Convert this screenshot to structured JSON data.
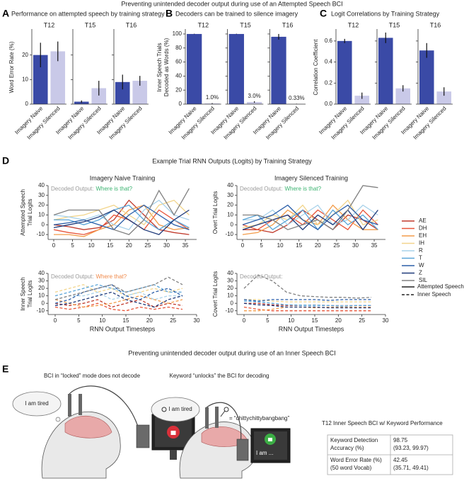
{
  "header": {
    "title": "Preventing unintended decoder output during use of an Attempted Speech BCI"
  },
  "panel_labels": [
    "A",
    "B",
    "C",
    "D",
    "E"
  ],
  "chart_data": [
    {
      "type": "bar",
      "title": "Performance on attempted speech by training strategy",
      "ylabel": [
        "Word Error Rate (%)"
      ],
      "categories": [
        "Imagery Naive",
        "Imagery Silenced"
      ],
      "colors": [
        "#3a4aa6",
        "#c9c9e8"
      ],
      "ylim": [
        0,
        30
      ],
      "yticks": [
        0,
        10,
        20
      ],
      "facets": [
        {
          "name": "T12",
          "values": [
            20,
            21.5
          ],
          "errors": [
            5,
            4
          ]
        },
        {
          "name": "T15",
          "values": [
            1,
            6.5
          ],
          "errors": [
            0.5,
            3
          ]
        },
        {
          "name": "T16",
          "values": [
            9,
            9.5
          ],
          "errors": [
            3,
            2
          ]
        }
      ]
    },
    {
      "type": "bar",
      "title": "Decoders can be trained to silence imagery",
      "ylabel": [
        "Inner Speech Trials",
        "Decoded as Words (%)"
      ],
      "categories": [
        "Imagery Naive",
        "Imagery Silenced"
      ],
      "colors": [
        "#3a4aa6",
        "#c9c9e8"
      ],
      "ylim": [
        0,
        105
      ],
      "yticks": [
        0,
        20,
        40,
        60,
        80,
        100
      ],
      "facets": [
        {
          "name": "T12",
          "values": [
            100,
            1.0
          ],
          "errors": [
            0.3,
            0.5
          ],
          "value_labels": [
            null,
            "1.0%"
          ]
        },
        {
          "name": "T15",
          "values": [
            100,
            3.0
          ],
          "errors": [
            0.3,
            1
          ],
          "value_labels": [
            null,
            "3.0%"
          ]
        },
        {
          "name": "T16",
          "values": [
            96,
            0.33
          ],
          "errors": [
            4,
            0.3
          ],
          "value_labels": [
            null,
            "0.33%"
          ]
        }
      ]
    },
    {
      "type": "bar",
      "title": "Logit Correlations by Training Strategy",
      "ylabel": [
        "Correlation Coefficient"
      ],
      "categories": [
        "Imagery Naive",
        "Imagery Silenced"
      ],
      "colors": [
        "#3a4aa6",
        "#c9c9e8"
      ],
      "ylim": [
        0,
        0.7
      ],
      "yticks": [
        {
          "value": 0,
          "label": "0.0"
        },
        0.2,
        0.4,
        0.6
      ],
      "facets": [
        {
          "name": "T12",
          "values": [
            0.6,
            0.08
          ],
          "errors": [
            0.02,
            0.03
          ]
        },
        {
          "name": "T15",
          "values": [
            0.63,
            0.15
          ],
          "errors": [
            0.05,
            0.03
          ]
        },
        {
          "name": "T16",
          "values": [
            0.51,
            0.12
          ],
          "errors": [
            0.07,
            0.04
          ]
        }
      ]
    },
    {
      "type": "line",
      "title": "Imagery Naive Training",
      "ylabel": [
        "Attempted Speech",
        "Trial Logits"
      ],
      "linestyle": "solid",
      "annotation": [
        {
          "text": "Decoded Output:",
          "color": "#9a9a9a"
        },
        {
          "text": "Where is that?",
          "color": "#3cb371"
        }
      ],
      "xlim": [
        -1.5,
        38
      ],
      "ylim": [
        -15,
        40
      ],
      "xticks": [
        0,
        5,
        10,
        15,
        20,
        25,
        30,
        35
      ],
      "yticks": [
        -10,
        0,
        10,
        20,
        30,
        40
      ],
      "x": [
        0,
        4,
        8,
        12,
        16,
        20,
        24,
        28,
        32,
        36
      ],
      "series": [
        {
          "name": "AE",
          "color": "#c0392b",
          "values": [
            0,
            -2,
            -5,
            -3,
            5,
            25,
            10,
            -5,
            -8,
            -10
          ]
        },
        {
          "name": "DH",
          "color": "#e8553a",
          "values": [
            -5,
            -8,
            -10,
            -5,
            10,
            5,
            -5,
            15,
            5,
            -5
          ]
        },
        {
          "name": "EH",
          "color": "#f39c4a",
          "values": [
            -10,
            -10,
            -12,
            -5,
            0,
            15,
            20,
            0,
            -5,
            -3
          ]
        },
        {
          "name": "IH",
          "color": "#f2d58c",
          "values": [
            5,
            8,
            10,
            15,
            20,
            10,
            0,
            20,
            25,
            10
          ]
        },
        {
          "name": "R",
          "color": "#a9d2ea",
          "values": [
            10,
            8,
            5,
            10,
            0,
            -5,
            15,
            25,
            10,
            5
          ]
        },
        {
          "name": "T",
          "color": "#5aa5d8",
          "values": [
            5,
            5,
            0,
            5,
            15,
            20,
            5,
            -5,
            5,
            -3
          ]
        },
        {
          "name": "W",
          "color": "#2b5ea8",
          "values": [
            0,
            2,
            5,
            0,
            -5,
            10,
            20,
            10,
            0,
            -5
          ]
        },
        {
          "name": "Z",
          "color": "#1f3a7a",
          "values": [
            -3,
            0,
            3,
            8,
            15,
            5,
            -5,
            -10,
            5,
            15
          ]
        },
        {
          "name": "SIL",
          "color": "#808080",
          "values": [
            10,
            15,
            15,
            15,
            -5,
            -10,
            5,
            35,
            10,
            37
          ]
        }
      ]
    },
    {
      "type": "line",
      "title": "Imagery Silenced Training",
      "ylabel": [
        "Overt Trial Logits"
      ],
      "linestyle": "solid",
      "annotation": [
        {
          "text": "Decoded Output:",
          "color": "#9a9a9a"
        },
        {
          "text": "Where is that?",
          "color": "#3cb371"
        }
      ],
      "xlim": [
        -1.5,
        38
      ],
      "ylim": [
        -15,
        40
      ],
      "xticks": [
        0,
        5,
        10,
        15,
        20,
        25,
        30,
        35
      ],
      "yticks": [
        -10,
        0,
        10,
        20,
        30,
        40
      ],
      "x": [
        0,
        4,
        8,
        12,
        16,
        20,
        24,
        28,
        32,
        36
      ],
      "series": [
        {
          "name": "AE",
          "color": "#c0392b",
          "values": [
            -5,
            -5,
            -8,
            0,
            15,
            5,
            -5,
            10,
            5,
            -5
          ]
        },
        {
          "name": "DH",
          "color": "#e8553a",
          "values": [
            0,
            -5,
            5,
            10,
            0,
            15,
            5,
            -5,
            15,
            0
          ]
        },
        {
          "name": "EH",
          "color": "#f39c4a",
          "values": [
            -10,
            -8,
            0,
            15,
            5,
            0,
            20,
            5,
            -5,
            -5
          ]
        },
        {
          "name": "IH",
          "color": "#f2d58c",
          "values": [
            -3,
            0,
            10,
            5,
            20,
            0,
            10,
            25,
            0,
            5
          ]
        },
        {
          "name": "R",
          "color": "#a9d2ea",
          "values": [
            5,
            5,
            15,
            0,
            10,
            20,
            0,
            5,
            20,
            10
          ]
        },
        {
          "name": "T",
          "color": "#5aa5d8",
          "values": [
            5,
            10,
            -5,
            5,
            15,
            -5,
            15,
            0,
            10,
            -5
          ]
        },
        {
          "name": "W",
          "color": "#2b5ea8",
          "values": [
            0,
            5,
            10,
            20,
            5,
            -5,
            10,
            20,
            5,
            0
          ]
        },
        {
          "name": "Z",
          "color": "#1f3a7a",
          "values": [
            -5,
            0,
            5,
            10,
            -5,
            10,
            0,
            15,
            -5,
            15
          ]
        },
        {
          "name": "SIL",
          "color": "#808080",
          "values": [
            10,
            10,
            5,
            -5,
            0,
            5,
            -5,
            15,
            40,
            38
          ]
        }
      ]
    },
    {
      "type": "line",
      "ylabel": [
        "Inner Speech",
        "Trial Logits"
      ],
      "xlabel": "RNN Output Timesteps",
      "linestyle": "dashed",
      "annotation": [
        {
          "text": "Decoded Output:",
          "color": "#9a9a9a"
        },
        {
          "text": "Where that?",
          "color": "#f08a4b"
        }
      ],
      "xlim": [
        -1.5,
        30
      ],
      "ylim": [
        -15,
        40
      ],
      "xticks": [
        0,
        5,
        10,
        15,
        20,
        25,
        30
      ],
      "yticks": [
        -10,
        0,
        10,
        20,
        30,
        40
      ],
      "x": [
        0,
        3,
        6,
        9,
        12,
        15,
        18,
        21,
        24,
        27
      ],
      "series": [
        {
          "name": "AE",
          "color": "#c0392b",
          "values": [
            0,
            -3,
            0,
            5,
            -5,
            0,
            5,
            -5,
            0,
            -3
          ]
        },
        {
          "name": "DH",
          "color": "#e8553a",
          "values": [
            -5,
            -8,
            -5,
            0,
            -8,
            -10,
            -5,
            -8,
            -5,
            -8
          ]
        },
        {
          "name": "EH",
          "color": "#f39c4a",
          "values": [
            5,
            0,
            -5,
            -3,
            0,
            5,
            10,
            5,
            0,
            5
          ]
        },
        {
          "name": "IH",
          "color": "#f2d58c",
          "values": [
            15,
            20,
            25,
            15,
            20,
            10,
            15,
            20,
            15,
            20
          ]
        },
        {
          "name": "R",
          "color": "#a9d2ea",
          "values": [
            5,
            10,
            10,
            15,
            5,
            10,
            15,
            5,
            10,
            10
          ]
        },
        {
          "name": "T",
          "color": "#5aa5d8",
          "values": [
            10,
            15,
            20,
            25,
            20,
            15,
            20,
            25,
            15,
            15
          ]
        },
        {
          "name": "W",
          "color": "#2b5ea8",
          "values": [
            0,
            5,
            15,
            20,
            25,
            10,
            5,
            15,
            20,
            10
          ]
        },
        {
          "name": "Z",
          "color": "#1f3a7a",
          "values": [
            -3,
            0,
            5,
            10,
            15,
            5,
            0,
            -5,
            5,
            10
          ]
        },
        {
          "name": "SIL",
          "color": "#808080",
          "values": [
            5,
            10,
            15,
            20,
            25,
            15,
            20,
            25,
            35,
            25
          ]
        }
      ]
    },
    {
      "type": "line",
      "ylabel": [
        "Covert Trial Logits"
      ],
      "xlabel": "RNN Output Timesteps",
      "linestyle": "dashed",
      "annotation": [
        {
          "text": "Decoded Output:",
          "color": "#9a9a9a"
        }
      ],
      "xlim": [
        -1.5,
        30
      ],
      "ylim": [
        -15,
        40
      ],
      "xticks": [
        0,
        5,
        10,
        15,
        20,
        25,
        30
      ],
      "yticks": [
        -10,
        0,
        10,
        20,
        30,
        40
      ],
      "x": [
        0,
        3,
        6,
        9,
        12,
        15,
        18,
        21,
        24,
        27
      ],
      "series": [
        {
          "name": "AE",
          "color": "#c0392b",
          "values": [
            0,
            0,
            -2,
            -3,
            -3,
            -2,
            -3,
            -3,
            -3,
            -3
          ]
        },
        {
          "name": "DH",
          "color": "#e8553a",
          "values": [
            -5,
            -8,
            -10,
            -10,
            -10,
            -10,
            -10,
            -10,
            -10,
            -10
          ]
        },
        {
          "name": "EH",
          "color": "#f39c4a",
          "values": [
            -10,
            -10,
            -8,
            -5,
            -5,
            -6,
            -5,
            -5,
            -5,
            -5
          ]
        },
        {
          "name": "IH",
          "color": "#f2d58c",
          "values": [
            5,
            5,
            3,
            2,
            2,
            2,
            2,
            2,
            2,
            2
          ]
        },
        {
          "name": "R",
          "color": "#a9d2ea",
          "values": [
            3,
            3,
            0,
            -2,
            -2,
            -2,
            -3,
            -3,
            -3,
            -3
          ]
        },
        {
          "name": "T",
          "color": "#5aa5d8",
          "values": [
            3,
            2,
            0,
            -2,
            -3,
            -3,
            -3,
            -4,
            -3,
            -3
          ]
        },
        {
          "name": "W",
          "color": "#2b5ea8",
          "values": [
            5,
            3,
            5,
            5,
            5,
            5,
            4,
            5,
            5,
            5
          ]
        },
        {
          "name": "Z",
          "color": "#1f3a7a",
          "values": [
            0,
            -2,
            -3,
            -5,
            -5,
            -5,
            -6,
            -6,
            -6,
            -6
          ]
        },
        {
          "name": "SIL",
          "color": "#808080",
          "values": [
            20,
            38,
            30,
            15,
            10,
            9,
            8,
            8,
            7,
            8
          ]
        }
      ]
    }
  ],
  "panel_d": {
    "title": "Example Trial RNN Outputs (Logits) by Training Strategy",
    "line_styles": [
      {
        "label": "Attempted Speech",
        "linestyle": "solid"
      },
      {
        "label": "Inner Speech",
        "linestyle": "dashed"
      }
    ]
  },
  "panel_e": {
    "title": "Preventing unintended decoder output during use of an Inner Speech BCI",
    "left_caption": "BCI in “locked” mode does not decode",
    "left_bubble": "I am tired",
    "middle_caption": "Keyword “unlocks” the BCI for decoding",
    "middle_bubble": "I am tired",
    "keyword": "= “chittychittybangbang”",
    "screen_text": "I am ...",
    "table": {
      "title": "T12 Inner Speech BCI w/ Keyword Performance",
      "rows": [
        [
          [
            "Keyword Detection",
            "Accuracy (%)"
          ],
          [
            "98.75",
            "(93.23, 99.97)"
          ]
        ],
        [
          [
            "Word Error Rate (%)",
            "(50 word Vocab)"
          ],
          [
            "42.45",
            "(35.71, 49.41)"
          ]
        ]
      ]
    }
  }
}
